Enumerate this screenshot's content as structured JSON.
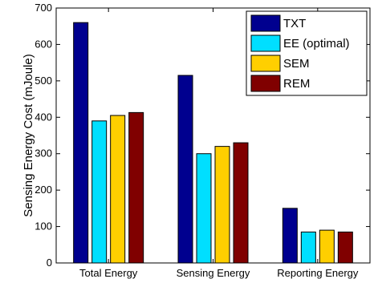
{
  "chart_data": {
    "type": "bar",
    "title": "",
    "xlabel": "",
    "ylabel": "Sensing Energy Cost (mJoule)",
    "categories": [
      "Total Energy",
      "Sensing Energy",
      "Reporting Energy"
    ],
    "ylim": [
      0,
      700
    ],
    "yticks": [
      0,
      100,
      200,
      300,
      400,
      500,
      600,
      700
    ],
    "grid": false,
    "legend_position": "top-right",
    "series": [
      {
        "name": "TXT",
        "color": "#00008f",
        "values": [
          660,
          515,
          150
        ]
      },
      {
        "name": "EE (optimal)",
        "color": "#00dfff",
        "values": [
          390,
          300,
          85
        ]
      },
      {
        "name": "SEM",
        "color": "#ffcf00",
        "values": [
          405,
          320,
          90
        ]
      },
      {
        "name": "REM",
        "color": "#800000",
        "values": [
          413,
          330,
          85
        ]
      }
    ]
  }
}
